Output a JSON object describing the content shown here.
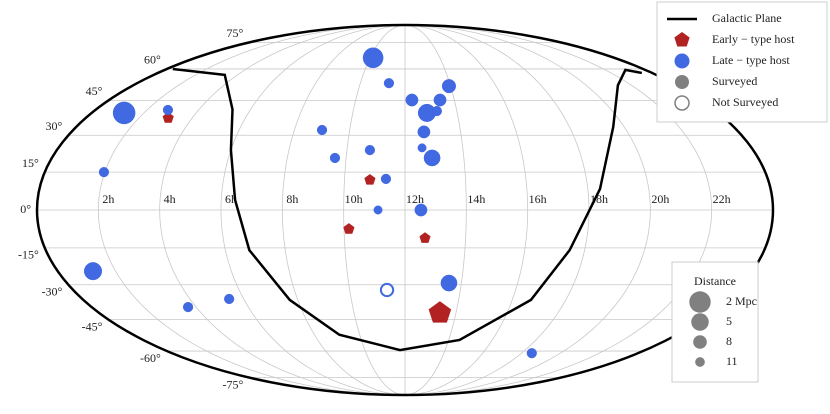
{
  "chart_data": {
    "type": "mollweide",
    "xlim": [
      0,
      24
    ],
    "ylim": [
      -90,
      90
    ],
    "xticks": [
      {
        "value": 2,
        "label": "2h"
      },
      {
        "value": 4,
        "label": "4h"
      },
      {
        "value": 6,
        "label": "6h"
      },
      {
        "value": 8,
        "label": "8h"
      },
      {
        "value": 10,
        "label": "10h"
      },
      {
        "value": 12,
        "label": "12h"
      },
      {
        "value": 14,
        "label": "14h"
      },
      {
        "value": 16,
        "label": "16h"
      },
      {
        "value": 18,
        "label": "18h"
      },
      {
        "value": 20,
        "label": "20h"
      },
      {
        "value": 22,
        "label": "22h"
      }
    ],
    "yticks": [
      {
        "value": 75,
        "label": "75°"
      },
      {
        "value": 60,
        "label": "60°"
      },
      {
        "value": 45,
        "label": "45°"
      },
      {
        "value": 30,
        "label": "30°"
      },
      {
        "value": 15,
        "label": "15°"
      },
      {
        "value": 0,
        "label": "0°"
      },
      {
        "value": -15,
        "label": "-15°"
      },
      {
        "value": -30,
        "label": "-30°"
      },
      {
        "value": -45,
        "label": "-45°"
      },
      {
        "value": -60,
        "label": "-60°"
      },
      {
        "value": -75,
        "label": "-75°"
      }
    ],
    "grid": true,
    "legend": "upper right",
    "series": [
      {
        "name": "Galactic Plane",
        "type": "line",
        "color": "#000000",
        "ra": [
          0.3,
          3.4,
          5.3,
          6.0,
          6.45,
          6.8,
          7.7,
          9.1,
          11.75,
          14.5,
          16.7,
          17.5,
          18.4,
          19.6,
          21.4,
          23.0,
          23.5
        ],
        "dec": [
          60,
          57,
          41,
          23.9,
          4,
          -15.9,
          -36.4,
          -52,
          -59.5,
          -54.5,
          -36.4,
          -15.9,
          8.3,
          33.5,
          52,
          59.5,
          58
        ]
      },
      {
        "name": "Early − type host",
        "type": "scatter",
        "marker": "pentagon",
        "color": "#b22222",
        "ra": [
          3.1,
          10.84,
          10.16,
          12.66,
          13.37
        ],
        "dec": [
          37.3,
          11.9,
          -7.5,
          -11.1,
          -42.1
        ],
        "distance": [
          11,
          11,
          11,
          11,
          3
        ],
        "surveyed": [
          true,
          true,
          true,
          true,
          true
        ]
      },
      {
        "name": "Late − type host",
        "type": "scatter",
        "marker": "circle",
        "color": "#4169e1",
        "ra": [
          10.17,
          11.28,
          13.93,
          12.28,
          13.42,
          12.84,
          13.23,
          1.24,
          2.81,
          12.68,
          9.0,
          12.59,
          10.79,
          12.92,
          9.62,
          11.37,
          1.97,
          11.12,
          12.52,
          1.22,
          13.56,
          3.69,
          5.46,
          18.53,
          11.35
        ],
        "dec": [
          65.9,
          53.0,
          51.6,
          45.2,
          45.2,
          39.5,
          40.3,
          39.5,
          40.8,
          31.4,
          32.2,
          24.8,
          23.9,
          20.7,
          20.7,
          12.3,
          15.0,
          0,
          0,
          -24.4,
          -29.3,
          -39.5,
          -36.0,
          -61.1,
          -32.2
        ],
        "distance": [
          3,
          11,
          8,
          9,
          9,
          5,
          11,
          1.5,
          11,
          9,
          11,
          12,
          11,
          6,
          11,
          11,
          11,
          12,
          9,
          5,
          6,
          11,
          11,
          11,
          9
        ],
        "surveyed": [
          true,
          true,
          true,
          true,
          true,
          true,
          true,
          true,
          true,
          true,
          true,
          true,
          true,
          true,
          true,
          true,
          true,
          true,
          true,
          true,
          true,
          true,
          true,
          true,
          false
        ]
      }
    ],
    "status_legend": [
      {
        "name": "Surveyed",
        "filled": true,
        "color": "#808080"
      },
      {
        "name": "Not Surveyed",
        "filled": false,
        "color": "#808080"
      }
    ],
    "size_legend": {
      "title": "Distance",
      "color": "#808080",
      "values": [
        {
          "value": 2,
          "label": "2 Mpc"
        },
        5,
        8,
        11
      ]
    }
  }
}
